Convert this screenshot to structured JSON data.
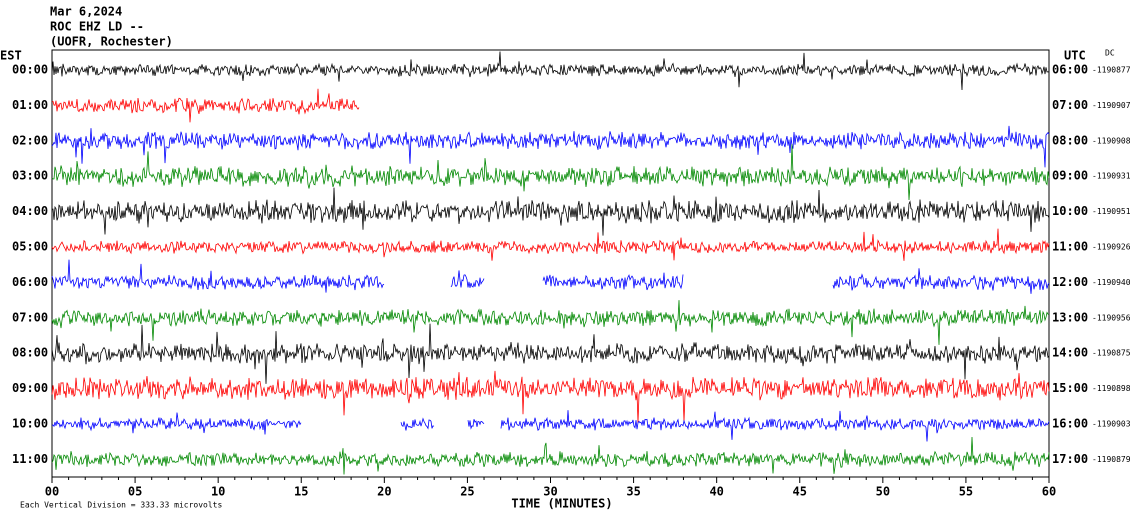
{
  "header": {
    "date": "Mar 6,2024",
    "station": "ROC EHZ LD --",
    "location": "(UOFR, Rochester)"
  },
  "left_axis": {
    "label": "EST",
    "labels": [
      "00:00",
      "01:00",
      "02:00",
      "03:00",
      "04:00",
      "05:00",
      "06:00",
      "07:00",
      "08:00",
      "09:00",
      "10:00",
      "11:00"
    ]
  },
  "right_axis": {
    "label": "UTC",
    "dc_label": "DC",
    "labels": [
      "06:00",
      "07:00",
      "08:00",
      "09:00",
      "10:00",
      "11:00",
      "12:00",
      "13:00",
      "14:00",
      "15:00",
      "16:00",
      "17:00"
    ],
    "dc_values": [
      "-1190877",
      "-1190907",
      "-1190908",
      "-1190931",
      "-1190951",
      "-1190926",
      "-1190940",
      "-1190956",
      "-1190875",
      "-1190898",
      "-1190903",
      "-1190879"
    ]
  },
  "x_axis": {
    "label": "TIME (MINUTES)",
    "ticks": [
      "00",
      "05",
      "10",
      "15",
      "20",
      "25",
      "30",
      "35",
      "40",
      "45",
      "50",
      "55",
      "60"
    ]
  },
  "footnote": "Each Vertical Division =  333.33 microvolts"
}
